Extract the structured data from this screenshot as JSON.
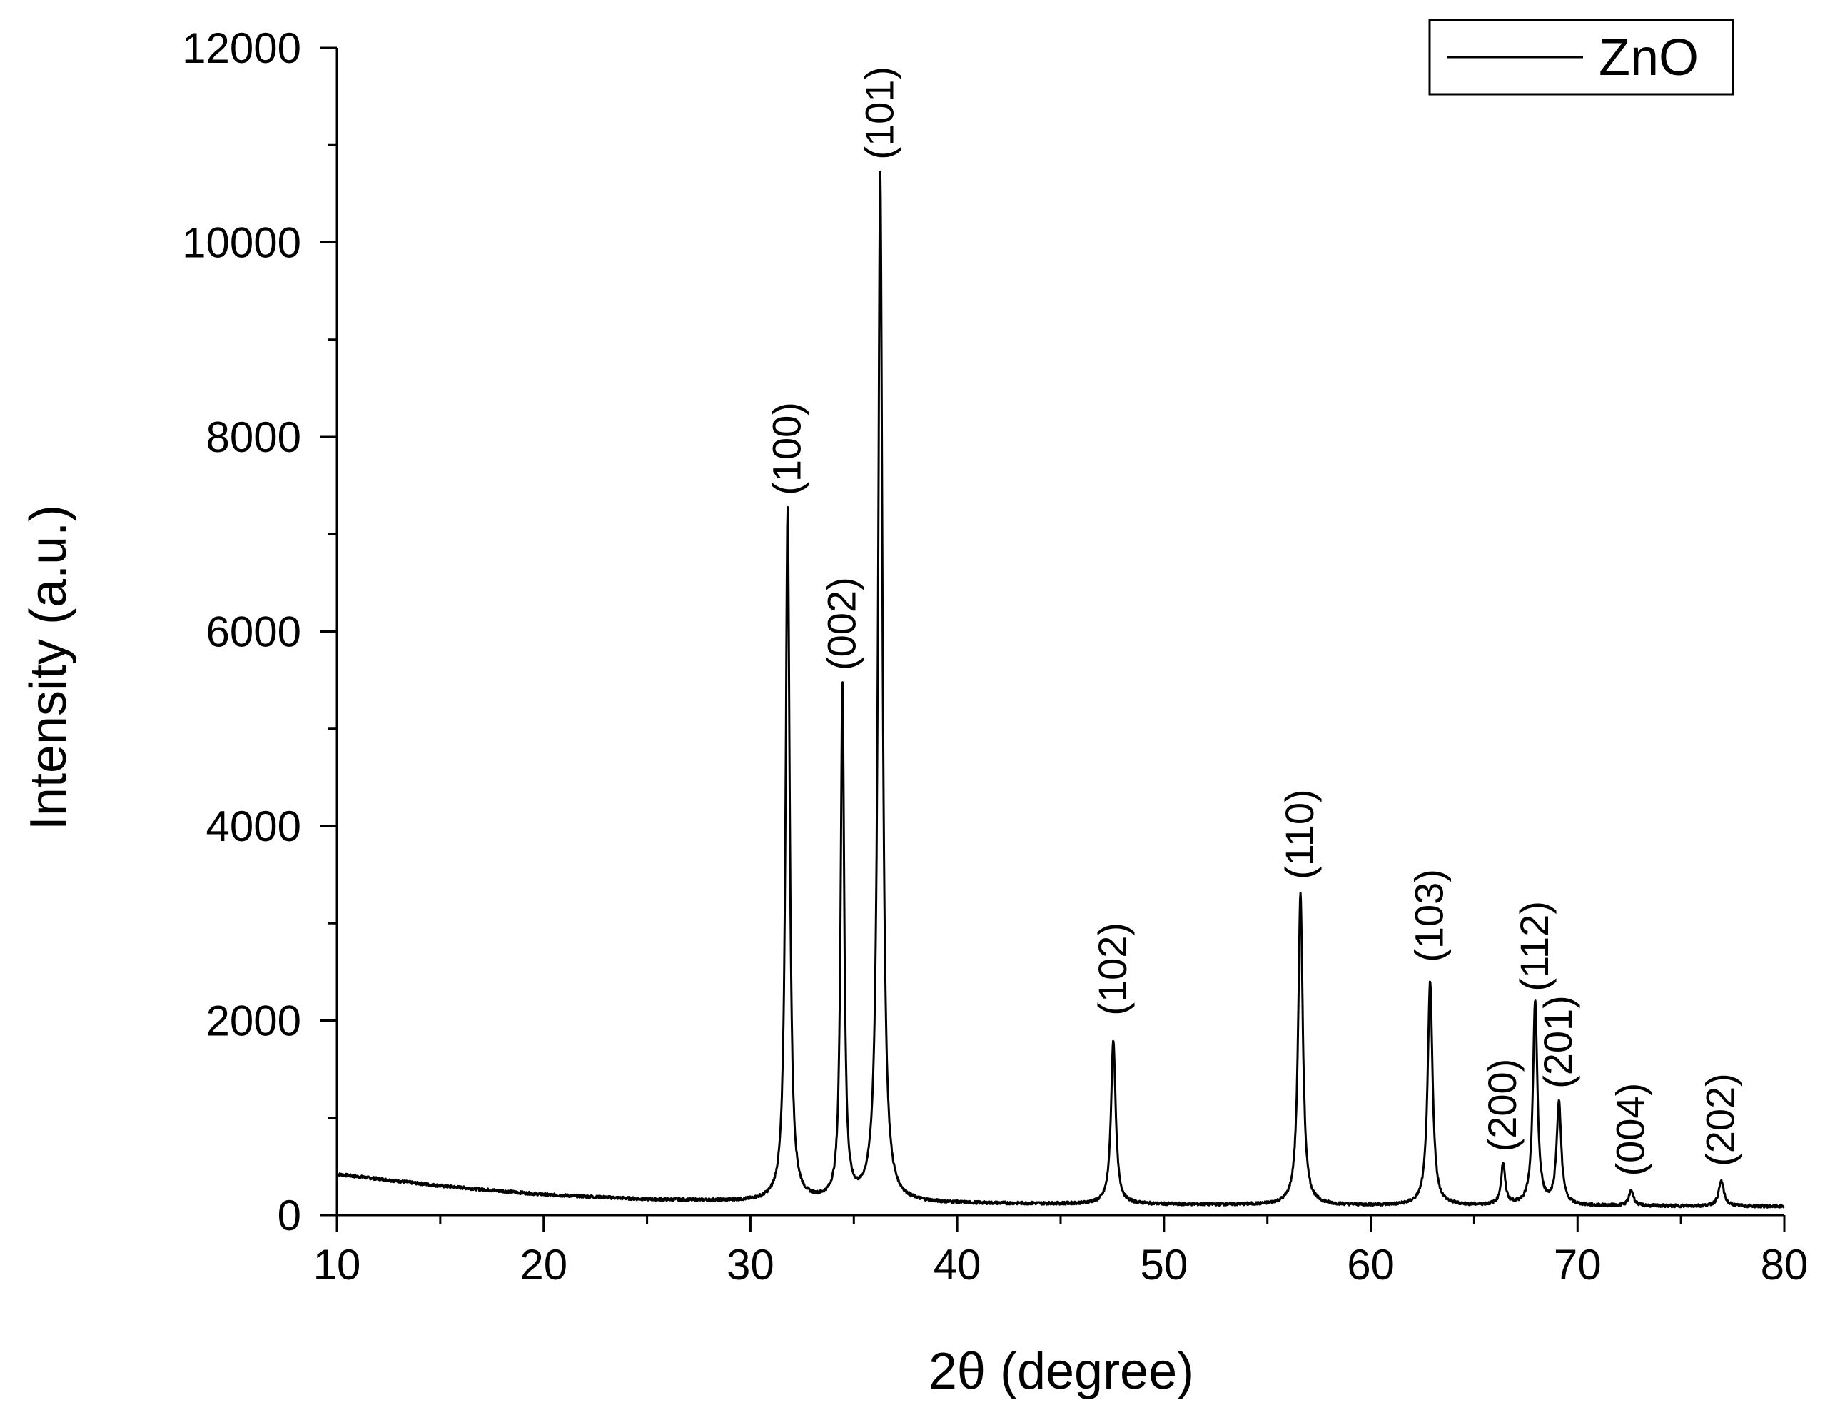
{
  "chart_data": {
    "type": "line",
    "xlabel": "2θ (degree)",
    "ylabel": "Intensity (a.u.)",
    "xlim": [
      10,
      80
    ],
    "ylim": [
      0,
      12000
    ],
    "x_major_ticks": [
      10,
      20,
      30,
      40,
      50,
      60,
      70,
      80
    ],
    "x_tick_labels": [
      "10",
      "20",
      "30",
      "40",
      "50",
      "60",
      "70",
      "80"
    ],
    "x_minor_step": 5,
    "y_major_ticks": [
      0,
      2000,
      4000,
      6000,
      8000,
      10000,
      12000
    ],
    "y_tick_labels": [
      "0",
      "2000",
      "4000",
      "6000",
      "8000",
      "10000",
      "12000"
    ],
    "y_minor_step": 1000,
    "grid": false,
    "legend": {
      "position": "top-right",
      "entries": [
        "ZnO"
      ]
    },
    "series": [
      {
        "name": "ZnO",
        "color": "#000000",
        "background": [
          [
            10,
            420
          ],
          [
            15,
            300
          ],
          [
            20,
            210
          ],
          [
            25,
            160
          ],
          [
            30,
            140
          ],
          [
            35,
            130
          ],
          [
            40,
            120
          ],
          [
            50,
            110
          ],
          [
            60,
            100
          ],
          [
            70,
            95
          ],
          [
            80,
            90
          ]
        ],
        "peaks": [
          {
            "x": 31.8,
            "y": 7250,
            "width": 0.35
          },
          {
            "x": 34.45,
            "y": 5450,
            "width": 0.3
          },
          {
            "x": 36.28,
            "y": 10700,
            "width": 0.38
          },
          {
            "x": 47.55,
            "y": 1800,
            "width": 0.4
          },
          {
            "x": 56.6,
            "y": 3300,
            "width": 0.4
          },
          {
            "x": 62.87,
            "y": 2400,
            "width": 0.42
          },
          {
            "x": 66.4,
            "y": 520,
            "width": 0.35
          },
          {
            "x": 67.95,
            "y": 2200,
            "width": 0.38
          },
          {
            "x": 69.1,
            "y": 1150,
            "width": 0.4
          },
          {
            "x": 72.6,
            "y": 250,
            "width": 0.4
          },
          {
            "x": 76.95,
            "y": 350,
            "width": 0.45
          }
        ]
      }
    ],
    "annotations": [
      {
        "text": "(100)",
        "x": 31.8,
        "y": 7400
      },
      {
        "text": "(002)",
        "x": 34.45,
        "y": 5600
      },
      {
        "text": "(101)",
        "x": 36.28,
        "y": 10850
      },
      {
        "text": "(102)",
        "x": 47.55,
        "y": 2050
      },
      {
        "text": "(110)",
        "x": 56.6,
        "y": 3450
      },
      {
        "text": "(103)",
        "x": 62.87,
        "y": 2600
      },
      {
        "text": "(200)",
        "x": 66.4,
        "y": 650
      },
      {
        "text": "(112)",
        "x": 67.95,
        "y": 2300
      },
      {
        "text": "(201)",
        "x": 69.1,
        "y": 1300
      },
      {
        "text": "(004)",
        "x": 72.6,
        "y": 400
      },
      {
        "text": "(202)",
        "x": 76.95,
        "y": 500
      }
    ]
  }
}
